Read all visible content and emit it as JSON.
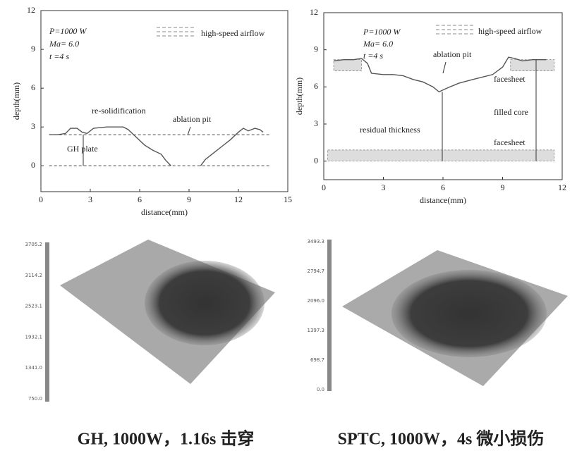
{
  "chart_data": [
    {
      "type": "line",
      "xlabel": "distance(mm)",
      "ylabel": "depth(mm)",
      "xlim": [
        0,
        15
      ],
      "xticks": [
        0,
        3,
        6,
        9,
        12,
        15
      ],
      "ylim": [
        -2,
        12
      ],
      "yticks": [
        0,
        3,
        6,
        9,
        12
      ],
      "x": [
        0.5,
        1,
        1.5,
        1.8,
        2.2,
        2.5,
        2.8,
        3.2,
        4,
        4.5,
        5,
        5.3,
        5.8,
        6.3,
        6.8,
        7.3,
        7.6,
        7.9,
        null,
        9.7,
        10,
        10.5,
        11,
        11.5,
        12,
        12.3,
        12.6,
        13,
        13.3,
        13.5
      ],
      "values": [
        2.4,
        2.4,
        2.5,
        2.9,
        2.9,
        2.6,
        2.5,
        2.9,
        3.0,
        3.0,
        3.0,
        2.8,
        2.2,
        1.6,
        1.2,
        0.9,
        0.4,
        0.0,
        null,
        0.0,
        0.5,
        1.0,
        1.5,
        2.0,
        2.6,
        2.9,
        2.7,
        2.9,
        2.8,
        2.6
      ],
      "color": "#555555",
      "hlines": [
        2.4,
        0
      ],
      "annotations": [
        "P=1000 W",
        "Ma= 6.0",
        "t =4 s",
        "high-speed airflow",
        "re-solidification",
        "ablation pit",
        "GH plate"
      ]
    },
    {
      "type": "line",
      "xlabel": "distance(mm)",
      "ylabel": "depth(mm)",
      "xlim": [
        0,
        12
      ],
      "xticks": [
        0,
        3,
        6,
        9,
        12
      ],
      "ylim": [
        -1.5,
        12
      ],
      "yticks": [
        0,
        3,
        6,
        9,
        12
      ],
      "x": [
        0.5,
        1,
        1.5,
        1.9,
        2.2,
        2.4,
        3,
        3.5,
        4,
        4.5,
        5,
        5.5,
        5.8,
        6.2,
        6.8,
        7.5,
        8.5,
        9,
        9.3,
        9.6,
        10,
        10.5,
        11,
        11.2
      ],
      "values": [
        8.1,
        8.2,
        8.2,
        8.3,
        7.9,
        7.1,
        7.0,
        7.0,
        6.9,
        6.6,
        6.4,
        6.0,
        5.6,
        5.9,
        6.3,
        6.6,
        7.0,
        7.6,
        8.4,
        8.3,
        8.1,
        8.2,
        8.2,
        8.2
      ],
      "color": "#555555",
      "bands": [
        [
          0,
          0.9
        ],
        [
          7.3,
          8.2
        ]
      ],
      "annotations": [
        "P=1000 W",
        "Ma= 6.0",
        "t =4 s",
        "high-speed airflow",
        "ablation pit",
        "facesheet",
        "filled core",
        "residual thickness",
        "facesheet"
      ]
    }
  ],
  "images": [
    {
      "scale": [
        "3705.2",
        "3114.2",
        "2523.1",
        "1932.1",
        "1341.0",
        "750.0"
      ],
      "caption": "GH, 1000W，1.16s 击穿"
    },
    {
      "scale": [
        "3493.3",
        "2794.7",
        "2096.0",
        "1397.3",
        "698.7",
        "0.0"
      ],
      "caption": "SPTC, 1000W，4s 微小损伤"
    }
  ]
}
